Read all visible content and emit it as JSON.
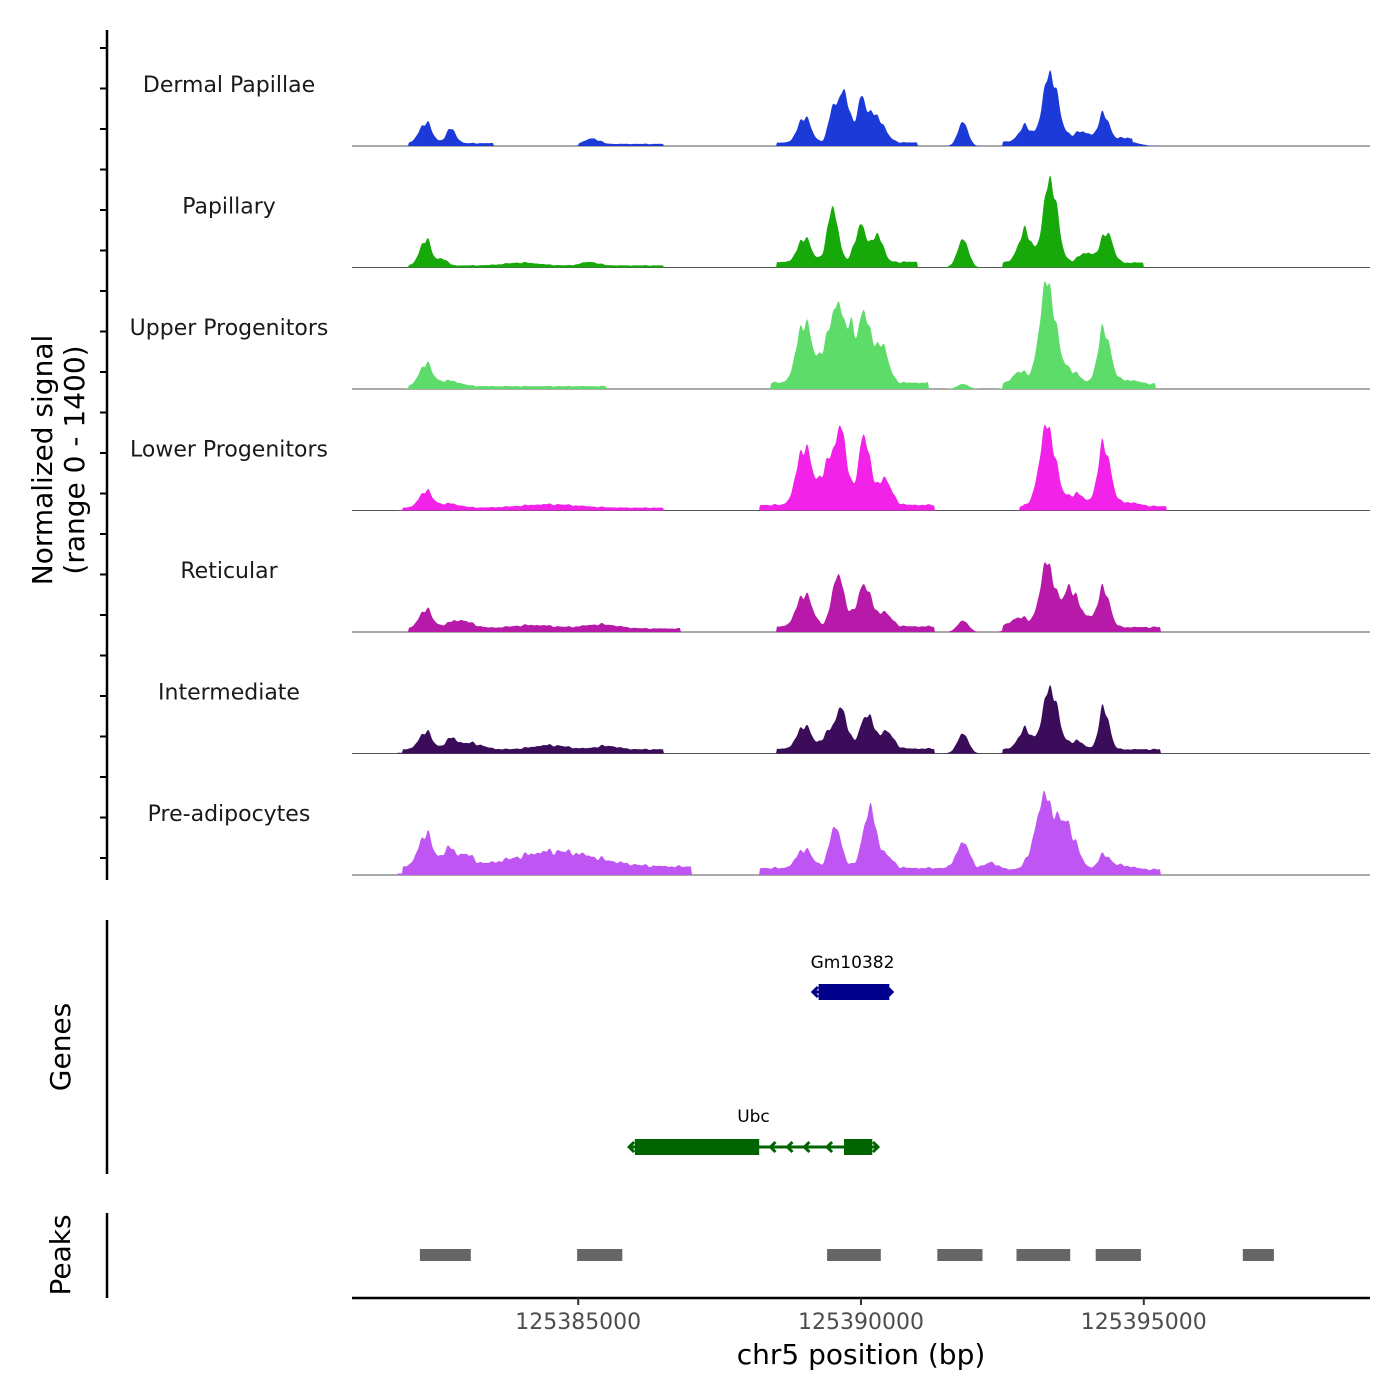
{
  "chart_data": {
    "type": "area",
    "y_axis_title_line1": "Normalized signal",
    "y_axis_title_line2": "(range 0 - 1400)",
    "signal_range": [
      0,
      1400
    ],
    "x_axis_title": "chr5 position (bp)",
    "x_range": [
      125381000,
      125399000
    ],
    "x_ticks": [
      125385000,
      125390000,
      125395000
    ],
    "x_tick_labels": [
      "125385000",
      "125390000",
      "125395000"
    ],
    "tracks": [
      {
        "name": "Dermal Papillae",
        "color": "#1c3ad8",
        "peaks": [
          [
            125382300,
            30,
            110
          ],
          [
            125382750,
            20,
            90
          ],
          [
            125385250,
            8,
            120
          ],
          [
            125389000,
            38,
            110
          ],
          [
            125389500,
            44,
            80
          ],
          [
            125389700,
            75,
            90
          ],
          [
            125390000,
            56,
            80
          ],
          [
            125390250,
            40,
            150
          ],
          [
            125391800,
            34,
            90
          ],
          [
            125392900,
            22,
            110
          ],
          [
            125393350,
            100,
            130
          ],
          [
            125393900,
            14,
            200
          ],
          [
            125394300,
            38,
            90
          ],
          [
            125394700,
            6,
            200
          ]
        ],
        "base": [
          [
            125382000,
            125383500,
            4
          ],
          [
            125385000,
            125386500,
            3
          ],
          [
            125388500,
            125391000,
            5
          ],
          [
            125392500,
            125394800,
            6
          ]
        ]
      },
      {
        "name": "Papillary",
        "color": "#17a80a",
        "peaks": [
          [
            125382300,
            38,
            100
          ],
          [
            125382600,
            10,
            80
          ],
          [
            125384000,
            4,
            300
          ],
          [
            125385200,
            5,
            150
          ],
          [
            125389000,
            36,
            110
          ],
          [
            125389500,
            74,
            100
          ],
          [
            125390000,
            54,
            100
          ],
          [
            125390300,
            40,
            90
          ],
          [
            125391800,
            40,
            100
          ],
          [
            125392900,
            44,
            120
          ],
          [
            125393350,
            122,
            120
          ],
          [
            125394000,
            14,
            150
          ],
          [
            125394350,
            44,
            100
          ]
        ],
        "base": [
          [
            125382000,
            125386500,
            3
          ],
          [
            125388500,
            125391000,
            8
          ],
          [
            125392500,
            125395000,
            7
          ]
        ]
      },
      {
        "name": "Upper Progenitors",
        "color": "#5ddc6a",
        "peaks": [
          [
            125382300,
            32,
            110
          ],
          [
            125382700,
            8,
            200
          ],
          [
            125389000,
            90,
            130
          ],
          [
            125389400,
            60,
            110
          ],
          [
            125389600,
            98,
            90
          ],
          [
            125389800,
            70,
            90
          ],
          [
            125390050,
            100,
            100
          ],
          [
            125390350,
            58,
            120
          ],
          [
            125391800,
            7,
            100
          ],
          [
            125392800,
            18,
            120
          ],
          [
            125393300,
            145,
            140
          ],
          [
            125393700,
            20,
            150
          ],
          [
            125394300,
            78,
            110
          ],
          [
            125394700,
            6,
            200
          ]
        ],
        "base": [
          [
            125382000,
            125385500,
            4
          ],
          [
            125388400,
            125391200,
            9
          ],
          [
            125392500,
            125395200,
            7
          ]
        ]
      },
      {
        "name": "Lower Progenitors",
        "color": "#f222e8",
        "peaks": [
          [
            125382300,
            24,
            110
          ],
          [
            125382700,
            6,
            200
          ],
          [
            125384500,
            5,
            500
          ],
          [
            125389000,
            86,
            130
          ],
          [
            125389400,
            58,
            110
          ],
          [
            125389650,
            110,
            100
          ],
          [
            125390050,
            100,
            100
          ],
          [
            125390400,
            38,
            130
          ],
          [
            125393300,
            115,
            140
          ],
          [
            125393800,
            18,
            150
          ],
          [
            125394300,
            88,
            110
          ],
          [
            125394700,
            6,
            200
          ]
        ],
        "base": [
          [
            125381500,
            125386500,
            4
          ],
          [
            125388200,
            125391300,
            8
          ],
          [
            125392800,
            125395400,
            6
          ]
        ]
      },
      {
        "name": "Reticular",
        "color": "#b71aa8",
        "peaks": [
          [
            125382300,
            28,
            110
          ],
          [
            125382900,
            12,
            220
          ],
          [
            125384200,
            5,
            400
          ],
          [
            125385400,
            6,
            300
          ],
          [
            125389000,
            48,
            130
          ],
          [
            125389600,
            74,
            110
          ],
          [
            125390050,
            60,
            120
          ],
          [
            125390400,
            20,
            130
          ],
          [
            125391800,
            16,
            100
          ],
          [
            125392800,
            14,
            150
          ],
          [
            125393300,
            92,
            130
          ],
          [
            125393700,
            56,
            120
          ],
          [
            125394000,
            14,
            150
          ],
          [
            125394300,
            54,
            100
          ]
        ],
        "base": [
          [
            125382000,
            125386800,
            5
          ],
          [
            125388500,
            125391300,
            8
          ],
          [
            125392500,
            125395300,
            7
          ]
        ]
      },
      {
        "name": "Intermediate",
        "color": "#3b0c5a",
        "peaks": [
          [
            125382300,
            26,
            110
          ],
          [
            125382750,
            14,
            110
          ],
          [
            125383100,
            9,
            200
          ],
          [
            125384500,
            6,
            300
          ],
          [
            125385500,
            5,
            200
          ],
          [
            125389000,
            34,
            120
          ],
          [
            125389400,
            22,
            90
          ],
          [
            125389650,
            60,
            100
          ],
          [
            125390100,
            48,
            120
          ],
          [
            125390450,
            24,
            120
          ],
          [
            125391800,
            28,
            100
          ],
          [
            125392900,
            28,
            120
          ],
          [
            125393350,
            90,
            130
          ],
          [
            125393800,
            12,
            130
          ],
          [
            125394300,
            60,
            90
          ]
        ],
        "base": [
          [
            125381800,
            125386500,
            6
          ],
          [
            125388500,
            125391300,
            7
          ],
          [
            125392500,
            125395300,
            6
          ]
        ]
      },
      {
        "name": "Pre-adipocytes",
        "color": "#bf55f3",
        "peaks": [
          [
            125382300,
            48,
            120
          ],
          [
            125382700,
            24,
            110
          ],
          [
            125383000,
            16,
            140
          ],
          [
            125384600,
            22,
            700
          ],
          [
            125389000,
            28,
            130
          ],
          [
            125389550,
            58,
            110
          ],
          [
            125390150,
            82,
            120
          ],
          [
            125390450,
            16,
            120
          ],
          [
            125391800,
            38,
            120
          ],
          [
            125392300,
            10,
            120
          ],
          [
            125393250,
            100,
            170
          ],
          [
            125393650,
            60,
            160
          ],
          [
            125394300,
            20,
            100
          ],
          [
            125394600,
            6,
            200
          ]
        ],
        "base": [
          [
            125381800,
            125387000,
            12
          ],
          [
            125388200,
            125391500,
            10
          ],
          [
            125391500,
            125395300,
            8
          ]
        ]
      }
    ],
    "genes_title": "Genes",
    "genes": [
      {
        "name": "Gm10382",
        "color": "#00008b",
        "start": 125389150,
        "end": 125390550,
        "exons": [
          [
            125389250,
            125390500
          ]
        ],
        "introns": [],
        "strand": "+"
      },
      {
        "name": "Ubc",
        "color": "#006400",
        "start": 125385900,
        "end": 125390300,
        "exons": [
          [
            125386000,
            125388200
          ],
          [
            125389700,
            125390200
          ]
        ],
        "introns": [
          125388400,
          125388700,
          125389000,
          125389400
        ],
        "strand": "-"
      }
    ],
    "peaks_title": "Peaks",
    "peaks_color": "#666666",
    "peak_regions": [
      [
        125382200,
        125383100
      ],
      [
        125384980,
        125385780
      ],
      [
        125389400,
        125390350
      ],
      [
        125391350,
        125392150
      ],
      [
        125392750,
        125393700
      ],
      [
        125394150,
        125394950
      ],
      [
        125396750,
        125397300
      ]
    ]
  }
}
